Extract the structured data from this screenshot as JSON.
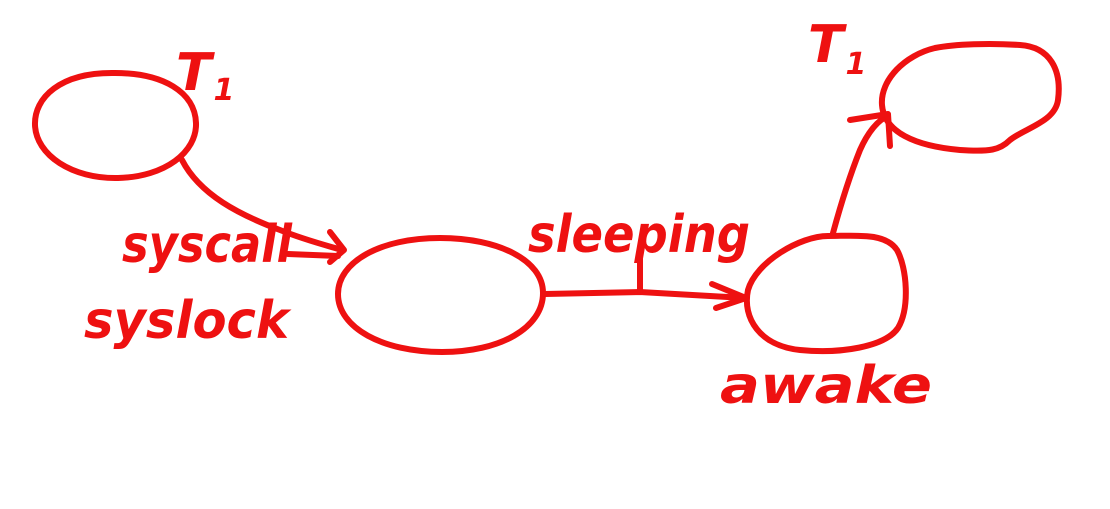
{
  "diagram": {
    "ink_color": "#ee1111",
    "background_color": "#ffffff",
    "labels": {
      "t1_left": "T",
      "t1_left_sub": "1",
      "t1_right": "T",
      "t1_right_sub": "1",
      "syscall": "syscall",
      "syslock": "syslock",
      "sleeping": "sleeping",
      "awake": "awake"
    }
  }
}
